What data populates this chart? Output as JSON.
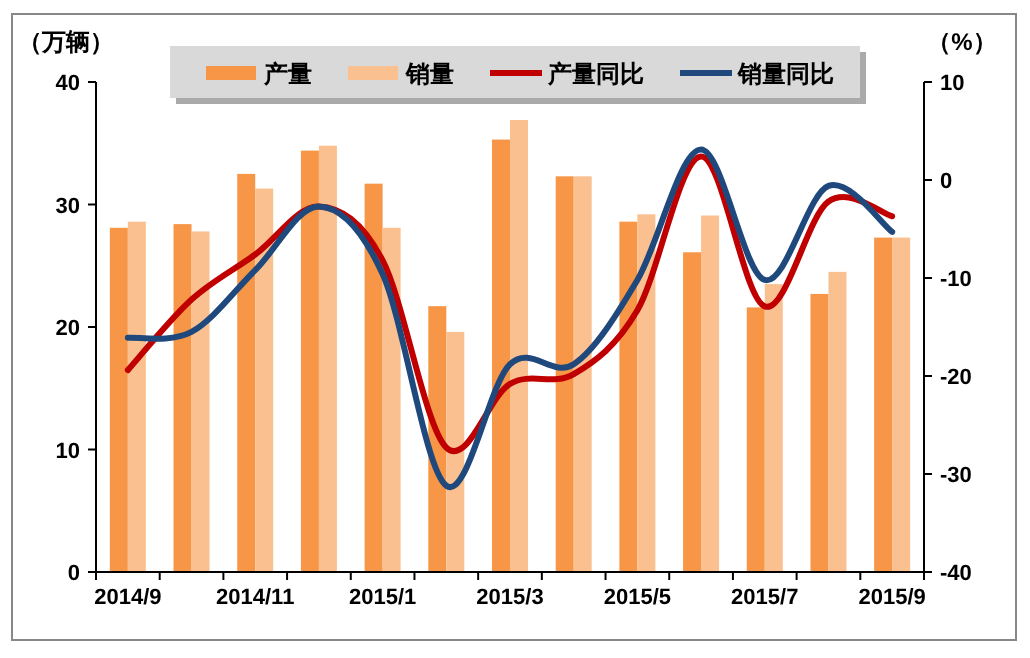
{
  "chart_data": {
    "type": "bar",
    "ylabel": "（万辆）",
    "y2label": "（%）",
    "categories": [
      "2014/9",
      null,
      "2014/11",
      null,
      "2015/1",
      null,
      "2015/3",
      null,
      "2015/5",
      null,
      "2015/7",
      null,
      "2015/9"
    ],
    "series": [
      {
        "name": "产量",
        "color": "#f79646",
        "values": [
          28.1,
          28.4,
          32.5,
          34.4,
          31.7,
          21.7,
          35.3,
          32.3,
          28.6,
          26.1,
          21.6,
          22.7,
          27.3
        ]
      },
      {
        "name": "销量",
        "color": "#fac090",
        "values": [
          28.6,
          27.8,
          31.3,
          34.8,
          28.1,
          19.6,
          36.9,
          32.3,
          29.2,
          29.1,
          23.5,
          24.5,
          27.3
        ]
      },
      {
        "name": "产量同比",
        "type": "line",
        "axis": "y2",
        "color": "#c00000",
        "values": [
          -19.4,
          -12.2,
          -7.6,
          -2.7,
          -8.2,
          -27.3,
          -20.8,
          -19.8,
          -13.3,
          2.4,
          -12.9,
          -2.2,
          -3.7
        ]
      },
      {
        "name": "销量同比",
        "type": "line",
        "axis": "y2",
        "color": "#1f497d",
        "values": [
          -16.1,
          -15.5,
          -9.2,
          -2.7,
          -9.6,
          -31.2,
          -18.8,
          -18.8,
          -10.2,
          3.1,
          -10.2,
          -0.6,
          -5.3
        ]
      }
    ],
    "ylim": [
      0,
      40
    ],
    "yticks": [
      0,
      10,
      20,
      30,
      40
    ],
    "y2lim": [
      -40,
      10
    ],
    "y2ticks": [
      -40,
      -30,
      -20,
      -10,
      0,
      10
    ],
    "grid": false,
    "legend": "top"
  }
}
